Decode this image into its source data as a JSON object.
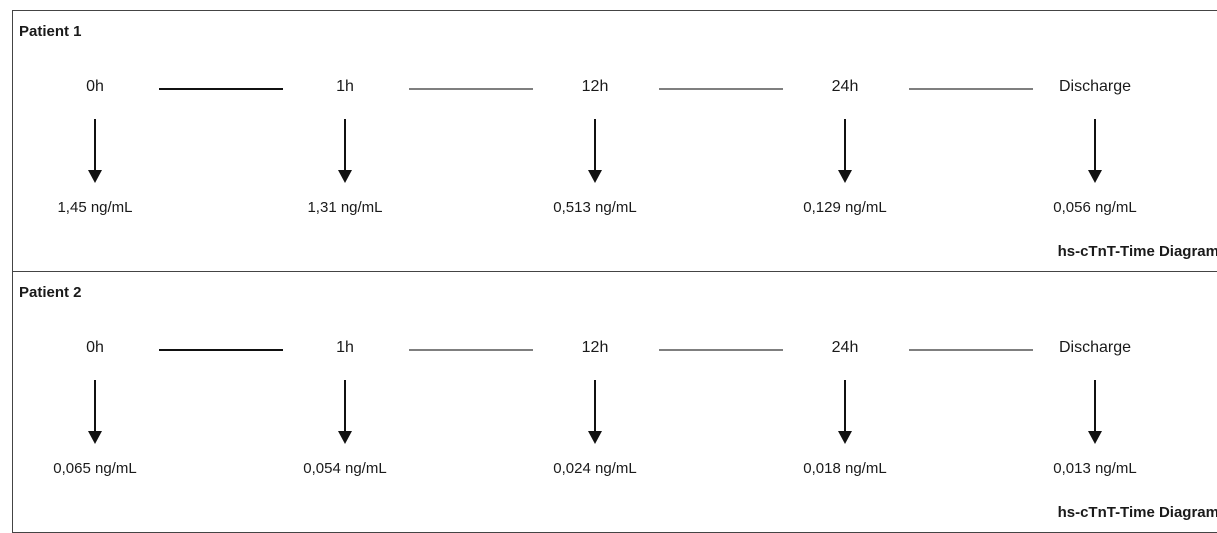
{
  "caption": "hs-cTnT-Time Diagram",
  "patients": [
    {
      "title": "Patient 1",
      "timepoints": [
        {
          "label": "0h",
          "value": "1,45 ng/mL"
        },
        {
          "label": "1h",
          "value": "1,31 ng/mL"
        },
        {
          "label": "12h",
          "value": "0,513 ng/mL"
        },
        {
          "label": "24h",
          "value": "0,129 ng/mL"
        },
        {
          "label": "Discharge",
          "value": "0,056 ng/mL"
        }
      ]
    },
    {
      "title": "Patient 2",
      "timepoints": [
        {
          "label": "0h",
          "value": "0,065 ng/mL"
        },
        {
          "label": "1h",
          "value": "0,054 ng/mL"
        },
        {
          "label": "12h",
          "value": "0,024 ng/mL"
        },
        {
          "label": "24h",
          "value": "0,018 ng/mL"
        },
        {
          "label": "Discharge",
          "value": "0,013 ng/mL"
        }
      ]
    }
  ]
}
